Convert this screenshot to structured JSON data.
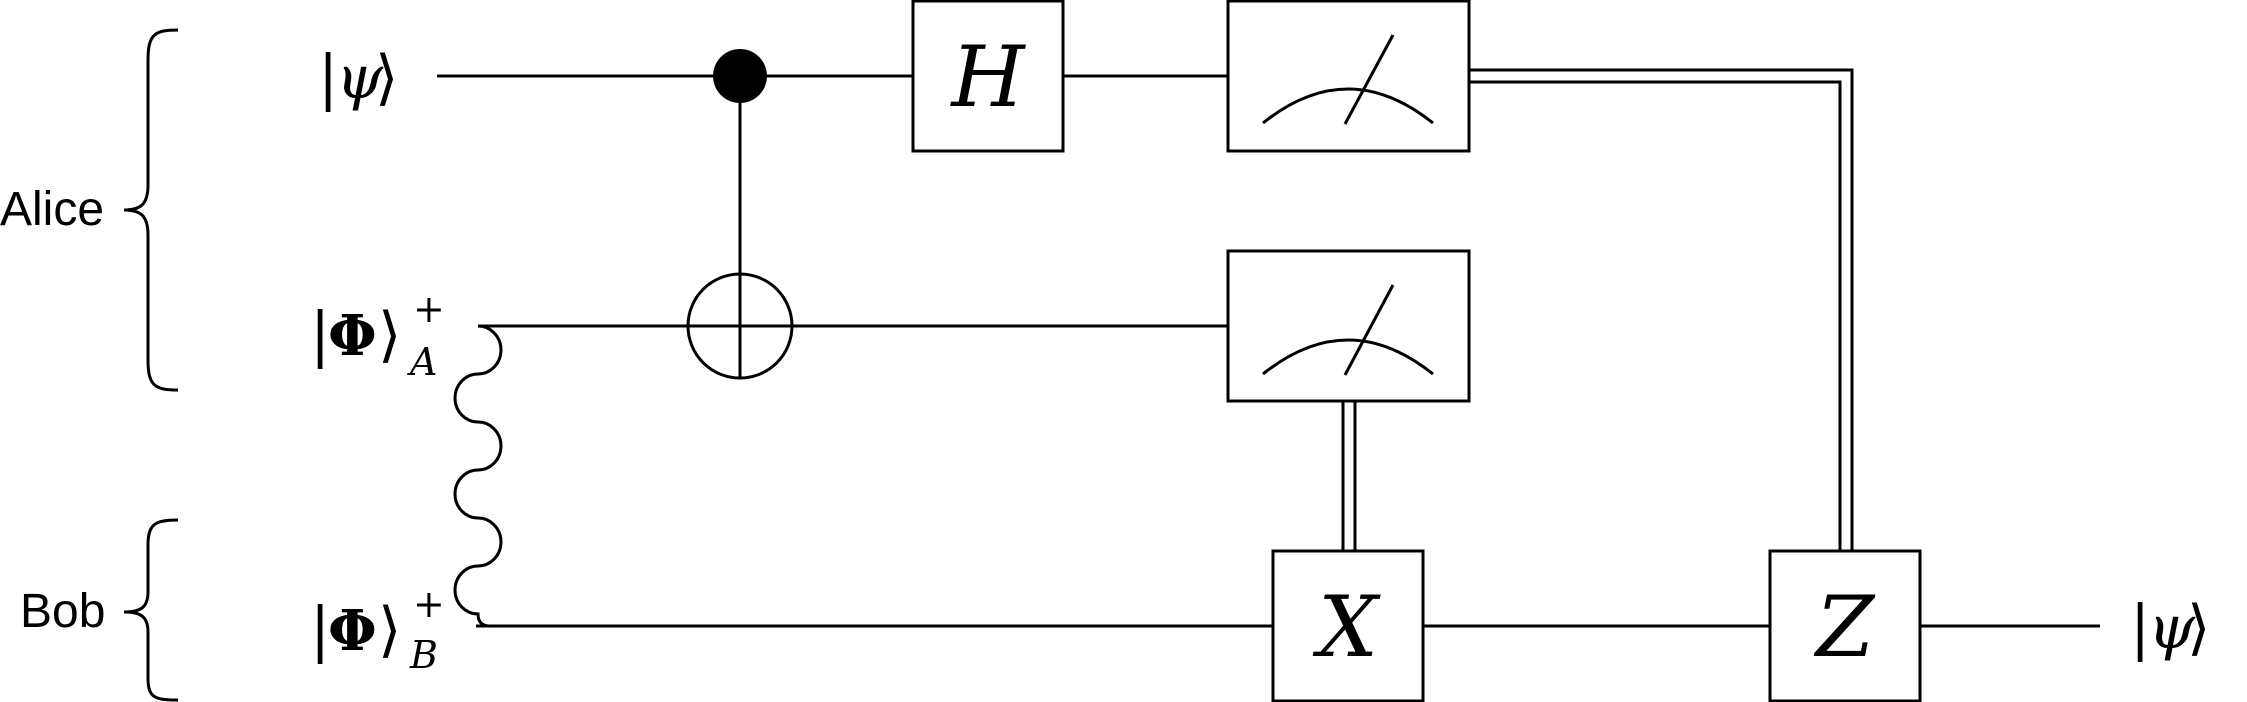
{
  "groups": {
    "alice": "Alice",
    "bob": "Bob"
  },
  "inputs": {
    "psi": {
      "bar": "|",
      "symbol": "ψ",
      "angle": "⟩"
    },
    "phi_a": {
      "bar": "|",
      "symbol": "Φ",
      "angle": "⟩",
      "sup": "+",
      "sub": "A"
    },
    "phi_b": {
      "bar": "|",
      "symbol": "Φ",
      "angle": "⟩",
      "sup": "+",
      "sub": "B"
    }
  },
  "output": {
    "bar": "|",
    "symbol": "ψ",
    "angle": "⟩"
  },
  "gates": {
    "hadamard": "H",
    "pauli_x": "X",
    "pauli_z": "Z"
  },
  "colors": {
    "stroke": "#000000",
    "background": "#ffffff"
  }
}
